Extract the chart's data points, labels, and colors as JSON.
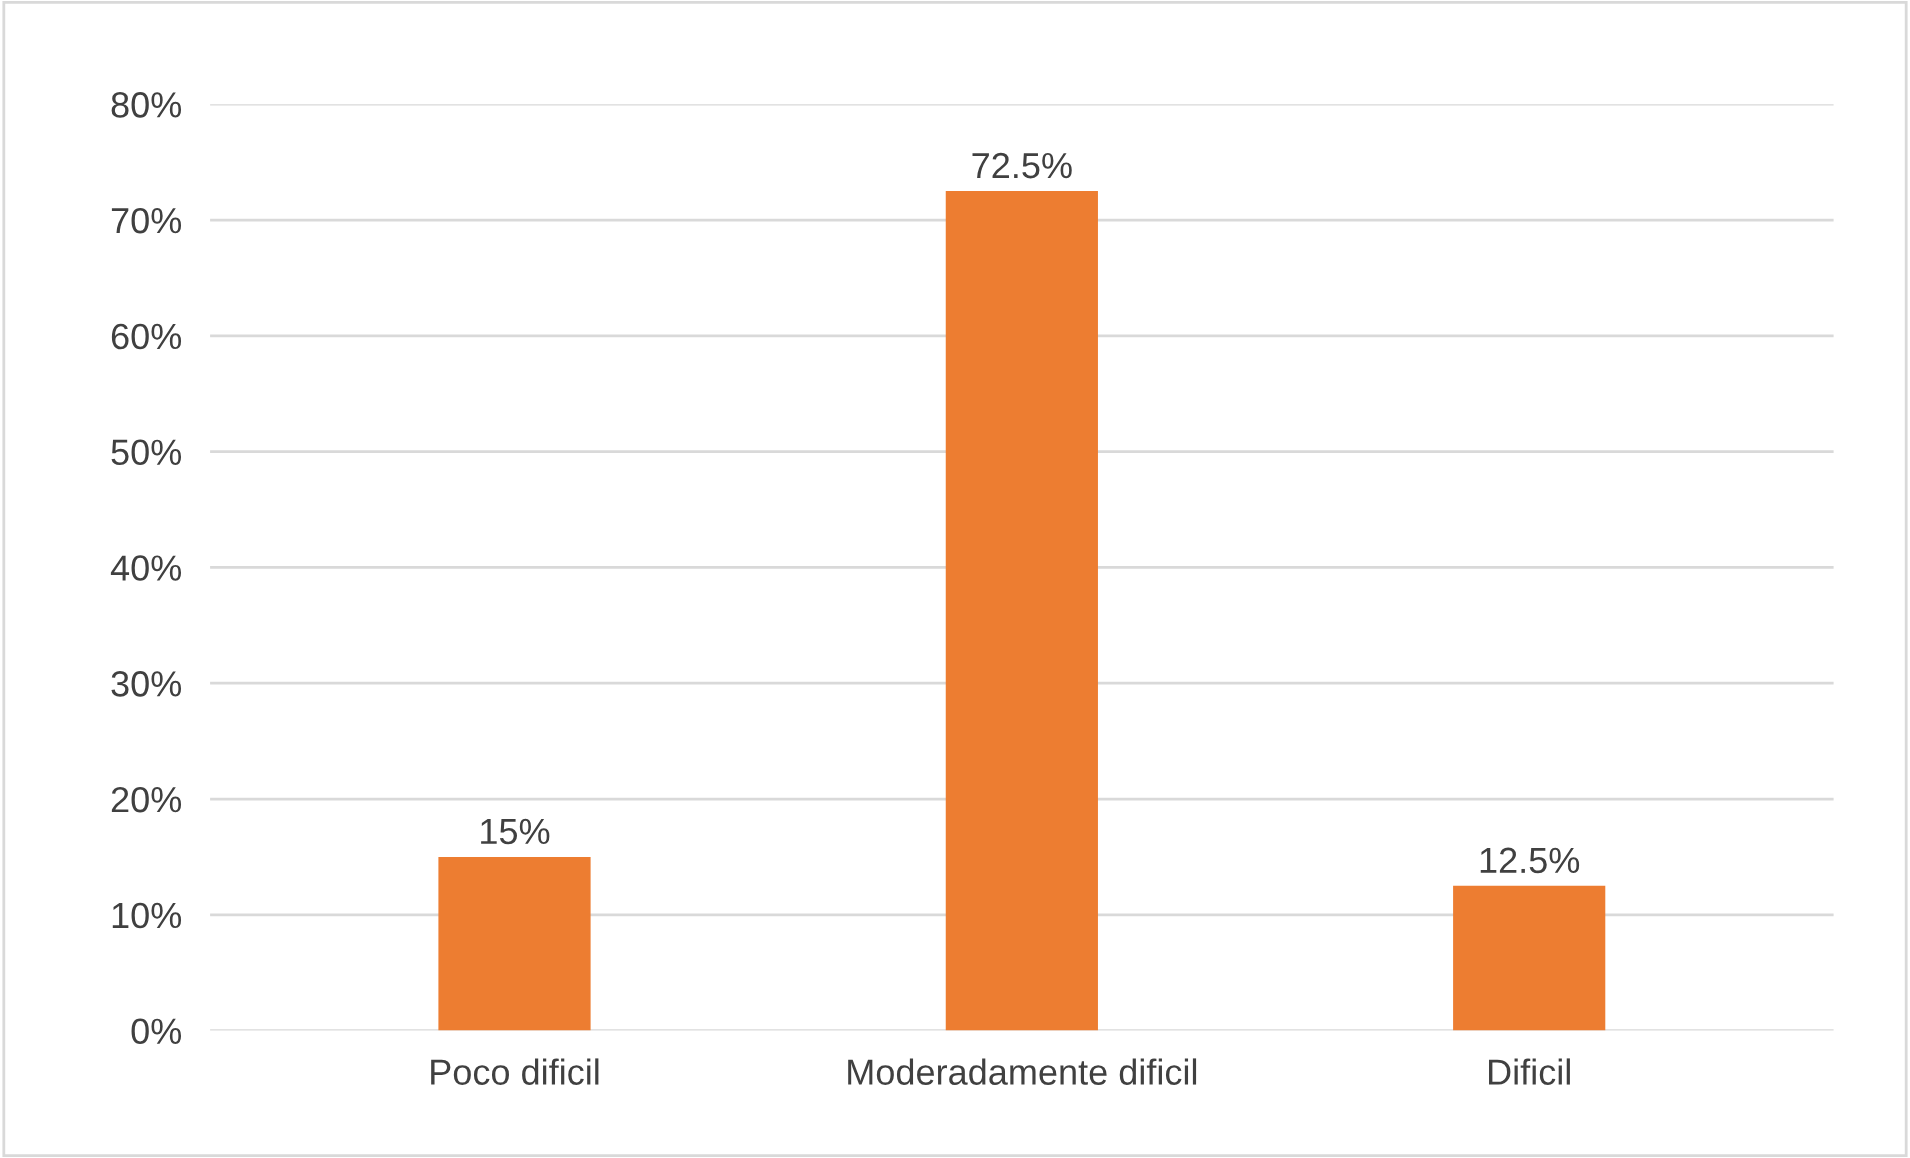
{
  "chart_data": {
    "type": "bar",
    "categories": [
      "Poco dificil",
      "Moderadamente dificil",
      "Dificil"
    ],
    "values": [
      15,
      72.5,
      12.5
    ],
    "value_labels": [
      "15%",
      "72.5%",
      "12.5%"
    ],
    "color": "#ed7d31",
    "ylim": [
      0,
      80
    ],
    "yticks": [
      {
        "value": 0,
        "label": "0%"
      },
      {
        "value": 10,
        "label": "10%"
      },
      {
        "value": 20,
        "label": "20%"
      },
      {
        "value": 30,
        "label": "30%"
      },
      {
        "value": 40,
        "label": "40%"
      },
      {
        "value": 50,
        "label": "50%"
      },
      {
        "value": 60,
        "label": "60%"
      },
      {
        "value": 70,
        "label": "70%"
      },
      {
        "value": 80,
        "label": "80%"
      }
    ],
    "grid": "y"
  }
}
